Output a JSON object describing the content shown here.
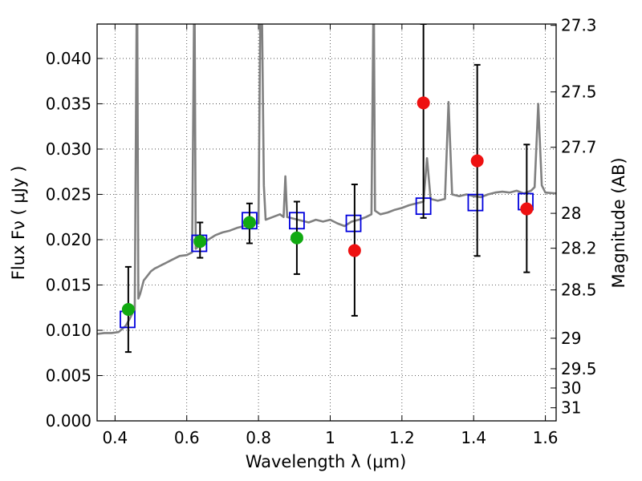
{
  "chart_data": {
    "type": "scatter",
    "title": "",
    "xlabel": "Wavelength  λ (μm)",
    "ylabel": "Flux  Fν  ( μJy )",
    "ylabel_right": "Magnitude (AB)",
    "xlim": [
      0.35,
      1.63
    ],
    "ylim": [
      0.0,
      0.0438
    ],
    "grid": true,
    "x_ticks": [
      0.4,
      0.6,
      0.8,
      1.0,
      1.2,
      1.4,
      1.6
    ],
    "x_tick_labels": [
      "0.4",
      "0.6",
      "0.8",
      "1",
      "1.2",
      "1.4",
      "1.6"
    ],
    "y_ticks": [
      0.0,
      0.005,
      0.01,
      0.015,
      0.02,
      0.025,
      0.03,
      0.035,
      0.04
    ],
    "y_tick_labels": [
      "0.000",
      "0.005",
      "0.010",
      "0.015",
      "0.020",
      "0.025",
      "0.030",
      "0.035",
      "0.040"
    ],
    "right_ticks": [
      {
        "mag": 27.3,
        "label": "27.3"
      },
      {
        "mag": 27.5,
        "label": "27.5"
      },
      {
        "mag": 27.7,
        "label": "27.7"
      },
      {
        "mag": 28.0,
        "label": "28"
      },
      {
        "mag": 28.2,
        "label": "28.2"
      },
      {
        "mag": 28.5,
        "label": "28.5"
      },
      {
        "mag": 29.0,
        "label": "29"
      },
      {
        "mag": 29.5,
        "label": "29.5"
      },
      {
        "mag": 30.0,
        "label": "30"
      },
      {
        "mag": 31.0,
        "label": "31"
      }
    ],
    "colors": {
      "spectrum": "#808080",
      "model": "#0000dd",
      "green": "#11aa11",
      "red": "#ee1111",
      "errorbar": "#000000"
    },
    "series": [
      {
        "kind": "line",
        "points": [
          [
            0.35,
            0.0096
          ],
          [
            0.37,
            0.0097
          ],
          [
            0.39,
            0.0097
          ],
          [
            0.41,
            0.0098
          ],
          [
            0.43,
            0.0105
          ],
          [
            0.44,
            0.0112
          ],
          [
            0.45,
            0.012
          ],
          [
            0.455,
            0.0122
          ],
          [
            0.46,
            0.0438
          ],
          [
            0.462,
            0.0438
          ],
          [
            0.465,
            0.0135
          ],
          [
            0.47,
            0.014
          ],
          [
            0.48,
            0.0155
          ],
          [
            0.49,
            0.016
          ],
          [
            0.5,
            0.0165
          ],
          [
            0.51,
            0.0168
          ],
          [
            0.52,
            0.017
          ],
          [
            0.53,
            0.0172
          ],
          [
            0.54,
            0.0174
          ],
          [
            0.56,
            0.0178
          ],
          [
            0.58,
            0.0182
          ],
          [
            0.6,
            0.0183
          ],
          [
            0.615,
            0.0186
          ],
          [
            0.62,
            0.0438
          ],
          [
            0.622,
            0.0438
          ],
          [
            0.625,
            0.019
          ],
          [
            0.64,
            0.0195
          ],
          [
            0.66,
            0.02
          ],
          [
            0.68,
            0.0205
          ],
          [
            0.7,
            0.0208
          ],
          [
            0.72,
            0.021
          ],
          [
            0.74,
            0.0213
          ],
          [
            0.76,
            0.0215
          ],
          [
            0.78,
            0.0218
          ],
          [
            0.8,
            0.0218
          ],
          [
            0.805,
            0.0438
          ],
          [
            0.81,
            0.0438
          ],
          [
            0.815,
            0.026
          ],
          [
            0.82,
            0.0222
          ],
          [
            0.84,
            0.0225
          ],
          [
            0.86,
            0.0228
          ],
          [
            0.87,
            0.0225
          ],
          [
            0.875,
            0.027
          ],
          [
            0.88,
            0.0225
          ],
          [
            0.9,
            0.0223
          ],
          [
            0.92,
            0.0221
          ],
          [
            0.94,
            0.0219
          ],
          [
            0.96,
            0.0222
          ],
          [
            0.98,
            0.022
          ],
          [
            1.0,
            0.0222
          ],
          [
            1.02,
            0.0218
          ],
          [
            1.04,
            0.0215
          ],
          [
            1.06,
            0.022
          ],
          [
            1.08,
            0.0222
          ],
          [
            1.1,
            0.0225
          ],
          [
            1.115,
            0.0228
          ],
          [
            1.12,
            0.0438
          ],
          [
            1.122,
            0.0438
          ],
          [
            1.125,
            0.0232
          ],
          [
            1.14,
            0.0228
          ],
          [
            1.16,
            0.023
          ],
          [
            1.18,
            0.0233
          ],
          [
            1.2,
            0.0235
          ],
          [
            1.22,
            0.0238
          ],
          [
            1.24,
            0.024
          ],
          [
            1.26,
            0.0242
          ],
          [
            1.27,
            0.029
          ],
          [
            1.28,
            0.0245
          ],
          [
            1.3,
            0.0243
          ],
          [
            1.32,
            0.0245
          ],
          [
            1.33,
            0.0352
          ],
          [
            1.34,
            0.025
          ],
          [
            1.36,
            0.0248
          ],
          [
            1.38,
            0.025
          ],
          [
            1.4,
            0.0248
          ],
          [
            1.42,
            0.0247
          ],
          [
            1.44,
            0.025
          ],
          [
            1.46,
            0.0252
          ],
          [
            1.48,
            0.0253
          ],
          [
            1.5,
            0.0252
          ],
          [
            1.52,
            0.0254
          ],
          [
            1.54,
            0.0251
          ],
          [
            1.56,
            0.0254
          ],
          [
            1.57,
            0.0258
          ],
          [
            1.58,
            0.035
          ],
          [
            1.59,
            0.026
          ],
          [
            1.6,
            0.0252
          ],
          [
            1.63,
            0.0251
          ]
        ]
      },
      {
        "kind": "model-squares",
        "points": [
          [
            0.435,
            0.0112
          ],
          [
            0.635,
            0.0196
          ],
          [
            0.775,
            0.0221
          ],
          [
            0.907,
            0.0221
          ],
          [
            1.065,
            0.0218
          ],
          [
            1.26,
            0.0237
          ],
          [
            1.405,
            0.0241
          ],
          [
            1.545,
            0.0242
          ]
        ]
      },
      {
        "kind": "observed",
        "points": [
          {
            "x": 0.437,
            "y": 0.0123,
            "err_lo": 0.0076,
            "err_hi": 0.017,
            "color": "green"
          },
          {
            "x": 0.637,
            "y": 0.0198,
            "err_lo": 0.018,
            "err_hi": 0.0219,
            "color": "green"
          },
          {
            "x": 0.775,
            "y": 0.0219,
            "err_lo": 0.0196,
            "err_hi": 0.024,
            "color": "green"
          },
          {
            "x": 0.907,
            "y": 0.0202,
            "err_lo": 0.0162,
            "err_hi": 0.0242,
            "color": "green"
          },
          {
            "x": 1.068,
            "y": 0.0188,
            "err_lo": 0.0116,
            "err_hi": 0.0261,
            "color": "red"
          },
          {
            "x": 1.26,
            "y": 0.0351,
            "err_lo": 0.0224,
            "err_hi": 0.0438,
            "color": "red"
          },
          {
            "x": 1.41,
            "y": 0.0287,
            "err_lo": 0.0182,
            "err_hi": 0.0393,
            "color": "red"
          },
          {
            "x": 1.548,
            "y": 0.0234,
            "err_lo": 0.0164,
            "err_hi": 0.0305,
            "color": "red"
          }
        ]
      }
    ]
  }
}
